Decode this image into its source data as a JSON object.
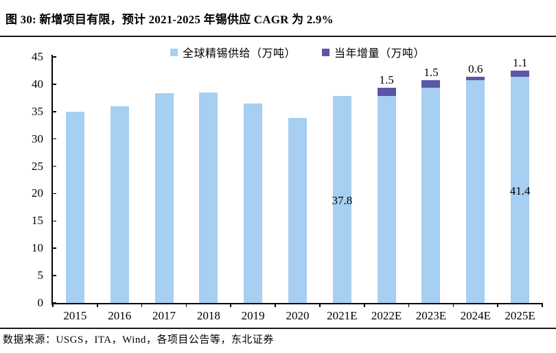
{
  "title": "图 30:  新增项目有限，预计 2021-2025 年锡供应 CAGR 为 2.9%",
  "source_note": "数据来源：USGS，ITA，Wind，各项目公告等，东北证券",
  "colors": {
    "supply_bar": "#A6CFF1",
    "increment_bar": "#5B57A6",
    "axis": "#000000",
    "text": "#000000"
  },
  "chart_data": {
    "type": "bar",
    "stacked": true,
    "title": "图 30:  新增项目有限，预计 2021-2025 年锡供应 CAGR 为 2.9%",
    "categories": [
      "2015",
      "2016",
      "2017",
      "2018",
      "2019",
      "2020",
      "2021E",
      "2022E",
      "2023E",
      "2024E",
      "2025E"
    ],
    "series": [
      {
        "name": "全球精锡供给（万吨）",
        "color": "#A6CFF1",
        "values": [
          35.0,
          36.0,
          38.4,
          38.5,
          36.5,
          33.9,
          37.8,
          37.8,
          39.3,
          40.8,
          41.4
        ]
      },
      {
        "name": "当年增量（万吨）",
        "color": "#5B57A6",
        "values": [
          0,
          0,
          0,
          0,
          0,
          0,
          0,
          1.5,
          1.5,
          0.6,
          1.1
        ]
      }
    ],
    "xlabel": "",
    "ylabel": "",
    "ylim": [
      0,
      45
    ],
    "ytick_step": 5,
    "grid": false,
    "legend_position": "top-center",
    "value_labels": [
      {
        "category": "2021E",
        "text": "37.8",
        "placement": "inside"
      },
      {
        "category": "2025E",
        "text": "41.4",
        "placement": "inside"
      },
      {
        "category": "2022E",
        "text": "1.5",
        "placement": "above"
      },
      {
        "category": "2023E",
        "text": "1.5",
        "placement": "above"
      },
      {
        "category": "2024E",
        "text": "0.6",
        "placement": "above"
      },
      {
        "category": "2025E",
        "text": "1.1",
        "placement": "above"
      }
    ],
    "source": "数据来源：USGS，ITA，Wind，各项目公告等，东北证券"
  }
}
